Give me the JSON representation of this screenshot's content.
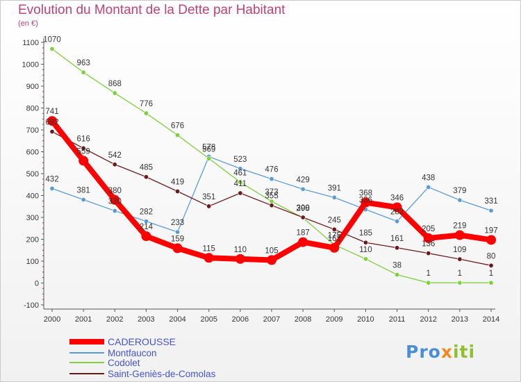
{
  "chart_data": {
    "type": "line",
    "title": "Evolution du Montant de la Dette par Habitant",
    "unit": "(en €)",
    "x": [
      "2000",
      "2001",
      "2002",
      "2003",
      "2004",
      "2005",
      "2006",
      "2007",
      "2008",
      "2009",
      "2010",
      "2011",
      "2012",
      "2013",
      "2014"
    ],
    "ylim": [
      -100,
      1100
    ],
    "yticks": [
      "-100",
      "0",
      "100",
      "200",
      "300",
      "400",
      "500",
      "600",
      "700",
      "800",
      "900",
      "1000",
      "1100"
    ],
    "grid": false,
    "legend_position": "bottom-left",
    "series": [
      {
        "name": "CADEROUSSE",
        "color": "#ff0000",
        "values": [
          741,
          559,
          380,
          214,
          159,
          115,
          110,
          105,
          187,
          161,
          368,
          346,
          205,
          219,
          197
        ]
      },
      {
        "name": "Montfaucon",
        "color": "#5b9bd5",
        "values": [
          432,
          381,
          330,
          282,
          233,
          578,
          523,
          476,
          429,
          391,
          336,
          282,
          438,
          379,
          331
        ]
      },
      {
        "name": "Codolet",
        "color": "#7fd03f",
        "values": [
          1070,
          963,
          868,
          776,
          676,
          569,
          461,
          373,
          298,
          175,
          110,
          38,
          1,
          1,
          1
        ]
      },
      {
        "name": "Saint-Geniès-de-Comolas",
        "color": "#6b1a1a",
        "values": [
          692,
          616,
          542,
          485,
          419,
          351,
          411,
          355,
          300,
          245,
          185,
          161,
          136,
          109,
          80
        ]
      }
    ]
  },
  "logo": {
    "p1": "Pro",
    "p2": "x",
    "p3": "iti"
  }
}
